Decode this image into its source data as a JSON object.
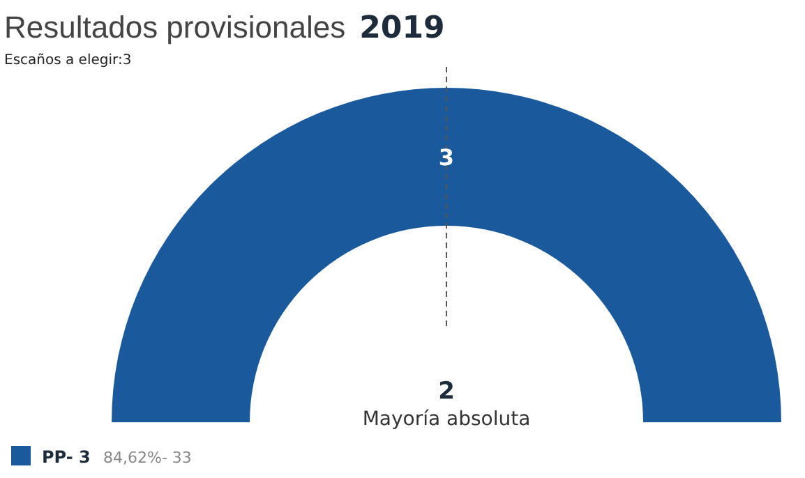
{
  "chart_data": {
    "type": "pie",
    "title": "Resultados provisionales 2019",
    "subtitle": "Escaños a elegir:3",
    "categories": [
      "PP- 3"
    ],
    "values": [
      3
    ],
    "colors": [
      "#1a5a9c"
    ],
    "data_labels": true,
    "legend": "bottom left",
    "annotations": [
      "2",
      "Mayoría absoluta",
      "84,62%- 33"
    ]
  }
}
